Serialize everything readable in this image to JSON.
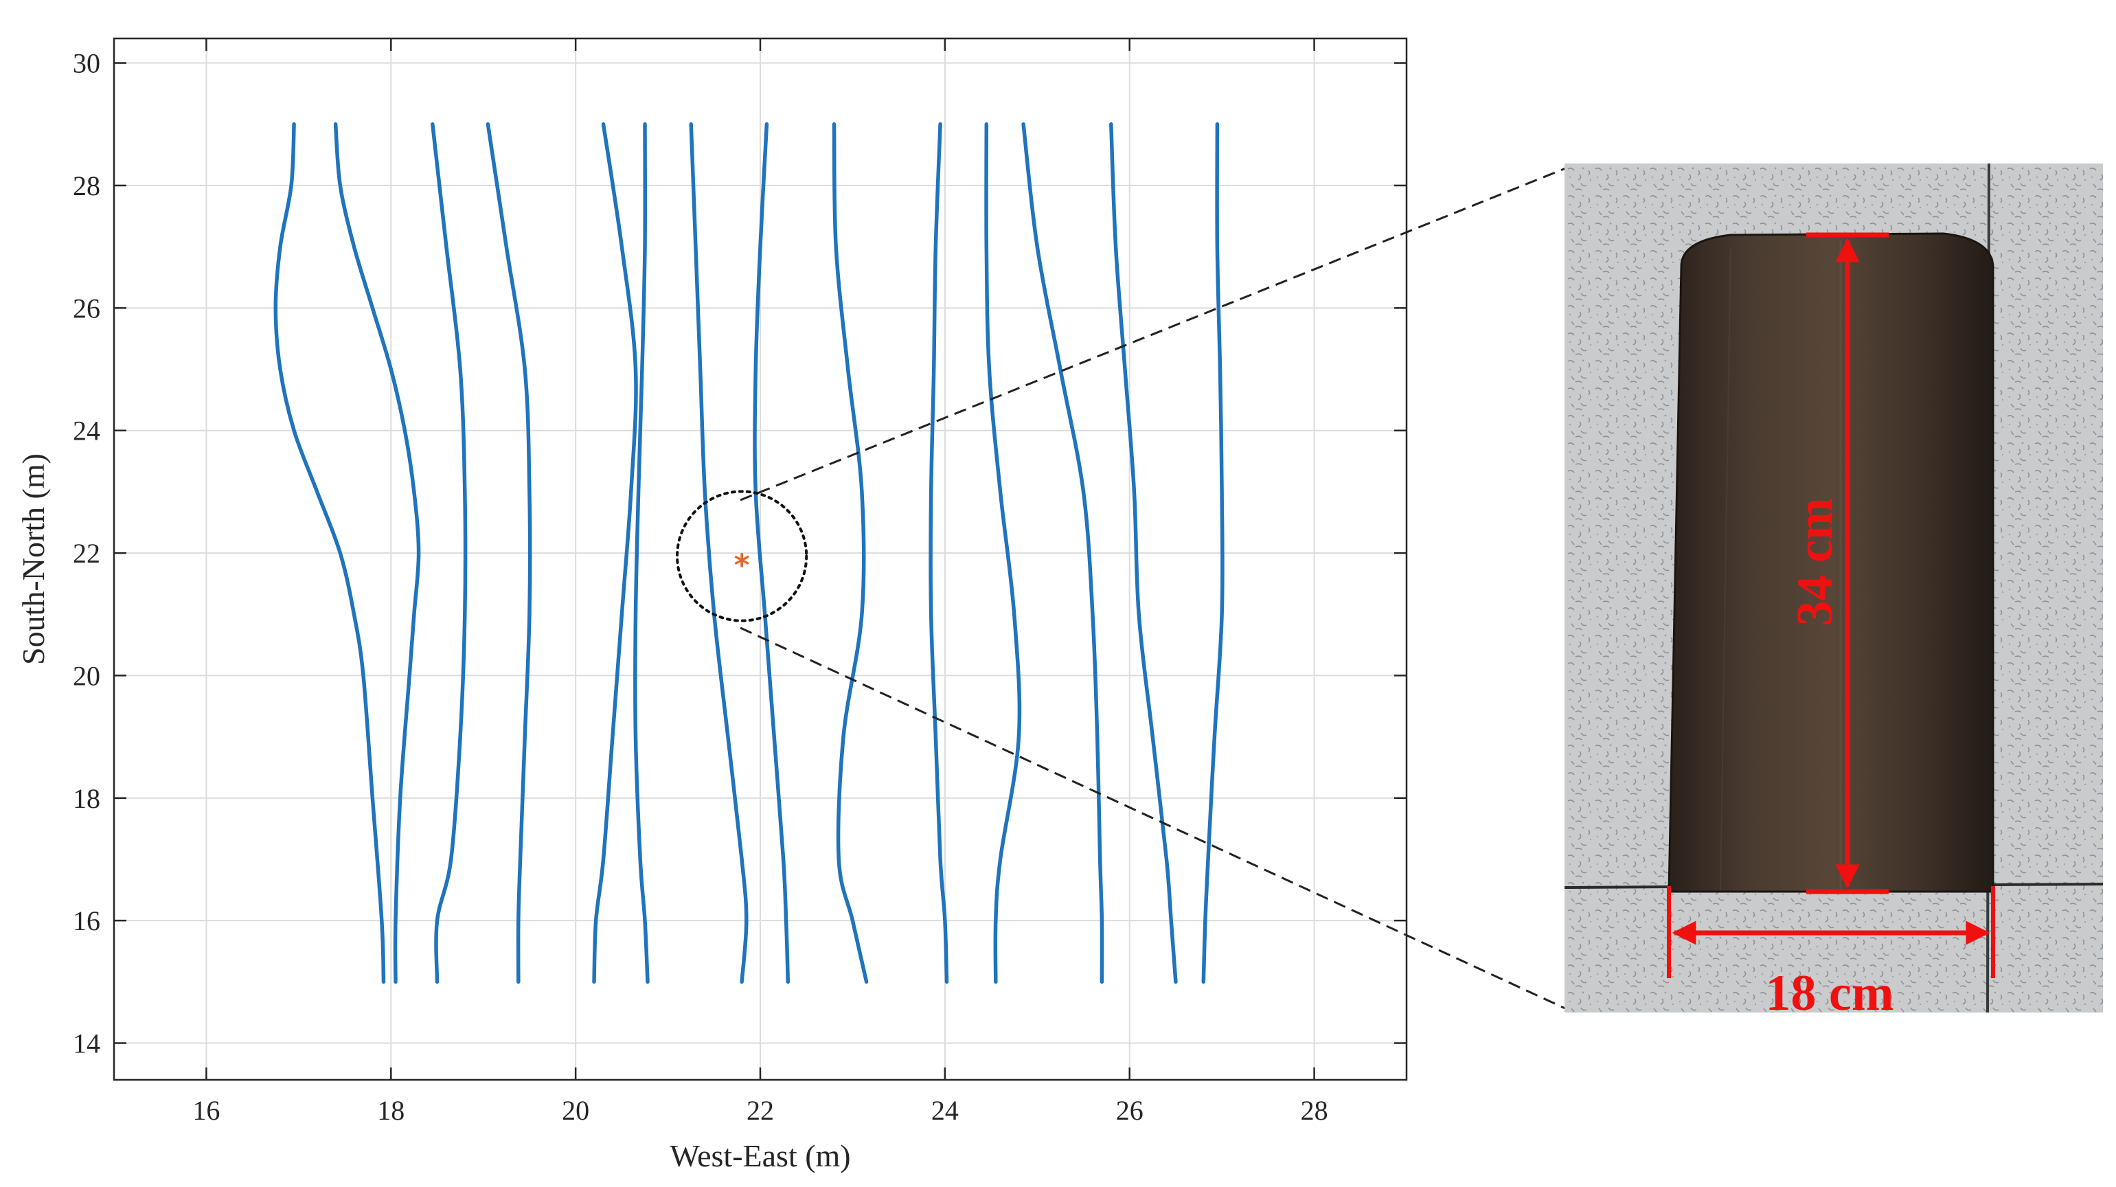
{
  "chart_data": {
    "type": "line",
    "xlabel": "West-East (m)",
    "ylabel": "South-North (m)",
    "xlim": [
      15,
      29
    ],
    "ylim": [
      13.4,
      30.4
    ],
    "xticks": [
      "16",
      "18",
      "20",
      "22",
      "24",
      "26",
      "28"
    ],
    "yticks": [
      "14",
      "16",
      "18",
      "20",
      "22",
      "24",
      "26",
      "28",
      "30"
    ],
    "grid": true,
    "series_color": "#1f74bd",
    "series": [
      {
        "x": [
          16.95,
          16.92,
          16.8,
          16.75,
          16.8,
          16.95,
          17.2,
          17.45,
          17.6,
          17.7,
          17.8,
          17.9,
          17.92
        ],
        "y": [
          29,
          28,
          27,
          26,
          25,
          24,
          23,
          22,
          21,
          20,
          18,
          16,
          15
        ]
      },
      {
        "x": [
          17.4,
          17.45,
          17.6,
          17.8,
          18.0,
          18.15,
          18.25,
          18.3,
          18.25,
          18.2,
          18.1,
          18.05,
          18.05
        ],
        "y": [
          29,
          28,
          27,
          26,
          25,
          24,
          23,
          22,
          21,
          20,
          18,
          16,
          15
        ]
      },
      {
        "x": [
          18.45,
          18.6,
          18.75,
          18.8,
          18.8,
          18.75,
          18.65,
          18.5,
          18.5
        ],
        "y": [
          29,
          27,
          25,
          23,
          21,
          19,
          17,
          16,
          15
        ]
      },
      {
        "x": [
          19.05,
          19.25,
          19.45,
          19.5,
          19.5,
          19.45,
          19.4,
          19.38,
          19.38
        ],
        "y": [
          29,
          27,
          25,
          23,
          21,
          19,
          17,
          16,
          15
        ]
      },
      {
        "x": [
          20.3,
          20.5,
          20.65,
          20.6,
          20.5,
          20.4,
          20.3,
          20.22,
          20.2
        ],
        "y": [
          29,
          27,
          25,
          23,
          21,
          19,
          17,
          16,
          15
        ]
      },
      {
        "x": [
          20.75,
          20.75,
          20.72,
          20.68,
          20.65,
          20.65,
          20.7,
          20.75,
          20.78
        ],
        "y": [
          29,
          27,
          25,
          23,
          21,
          19,
          17,
          16,
          15
        ]
      },
      {
        "x": [
          21.25,
          21.3,
          21.35,
          21.4,
          21.5,
          21.65,
          21.8,
          21.85,
          21.8
        ],
        "y": [
          29,
          27,
          25,
          23,
          21,
          19,
          17,
          16,
          15
        ]
      },
      {
        "x": [
          22.07,
          22.0,
          21.95,
          21.95,
          22.05,
          22.15,
          22.25,
          22.28,
          22.3
        ],
        "y": [
          29,
          27,
          25,
          23,
          21,
          19,
          17,
          16,
          15
        ]
      },
      {
        "x": [
          22.8,
          22.82,
          22.95,
          23.1,
          23.1,
          22.9,
          22.85,
          23.0,
          23.15
        ],
        "y": [
          29,
          27,
          25,
          23,
          21,
          19,
          17,
          16,
          15
        ]
      },
      {
        "x": [
          23.95,
          23.9,
          23.88,
          23.85,
          23.85,
          23.9,
          23.95,
          24.0,
          24.02
        ],
        "y": [
          29,
          27,
          25,
          23,
          21,
          19,
          17,
          16,
          15
        ]
      },
      {
        "x": [
          24.45,
          24.45,
          24.48,
          24.6,
          24.75,
          24.8,
          24.6,
          24.55,
          24.55
        ],
        "y": [
          29,
          27,
          25,
          23,
          21,
          19,
          17,
          16,
          15
        ]
      },
      {
        "x": [
          24.85,
          25.0,
          25.25,
          25.5,
          25.6,
          25.65,
          25.68,
          25.7,
          25.7
        ],
        "y": [
          29,
          27,
          25,
          23,
          21,
          19,
          17,
          16,
          15
        ]
      },
      {
        "x": [
          25.8,
          25.85,
          25.95,
          26.05,
          26.1,
          26.25,
          26.4,
          26.45,
          26.5
        ],
        "y": [
          29,
          27,
          25,
          23,
          21,
          19,
          17,
          16,
          15
        ]
      },
      {
        "x": [
          26.95,
          26.95,
          26.98,
          27.0,
          27.0,
          26.92,
          26.85,
          26.82,
          26.8
        ],
        "y": [
          29,
          27,
          25,
          23,
          21,
          19,
          17,
          16,
          15
        ]
      }
    ],
    "target": {
      "x": 21.8,
      "y": 21.95,
      "marker": "*",
      "color": "#e06a2c"
    },
    "highlight_circle": {
      "center_x": 21.8,
      "center_y": 21.95,
      "radius_m": 0.7
    }
  },
  "photo": {
    "height_label": "34 cm",
    "width_label": "18 cm",
    "annotation_color": "#f01010"
  }
}
